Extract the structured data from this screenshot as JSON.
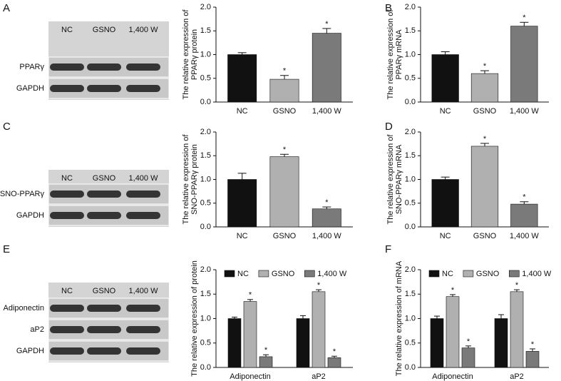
{
  "chart_data": [
    {
      "type": "bar",
      "panel": "A",
      "ylabel": [
        "The relative expression of",
        "PPARγ protein"
      ],
      "categories": [
        "NC",
        "GSNO",
        "1,400 W"
      ],
      "values": [
        1.0,
        0.48,
        1.45
      ],
      "errors": [
        0.04,
        0.08,
        0.1
      ],
      "colors": [
        "#111111",
        "#b0b0b0",
        "#7a7a7a"
      ],
      "markers": [
        null,
        "*",
        "*"
      ],
      "ylim": [
        0,
        2
      ],
      "yticks": [
        {
          "value": 0,
          "label": "0.0"
        },
        {
          "value": 0.5,
          "label": "0.5"
        },
        {
          "value": 1,
          "label": "1.0"
        },
        {
          "value": 1.5,
          "label": "1.5"
        },
        {
          "value": 2,
          "label": "2.0"
        }
      ]
    },
    {
      "type": "bar",
      "panel": "B",
      "ylabel": [
        "The relative expression of",
        "PPARγ mRNA"
      ],
      "categories": [
        "NC",
        "GSNO",
        "1,400 W"
      ],
      "values": [
        1.0,
        0.6,
        1.6
      ],
      "errors": [
        0.06,
        0.06,
        0.08
      ],
      "colors": [
        "#111111",
        "#b0b0b0",
        "#7a7a7a"
      ],
      "markers": [
        null,
        "*",
        "*"
      ],
      "ylim": [
        0,
        2
      ],
      "yticks": [
        {
          "value": 0,
          "label": "0.0"
        },
        {
          "value": 0.5,
          "label": "0.5"
        },
        {
          "value": 1,
          "label": "1.0"
        },
        {
          "value": 1.5,
          "label": "1.5"
        },
        {
          "value": 2,
          "label": "2.0"
        }
      ]
    },
    {
      "type": "bar",
      "panel": "C",
      "ylabel": [
        "The relative expression of",
        "SNO-PPARγ protein"
      ],
      "categories": [
        "NC",
        "GSNO",
        "1,400 W"
      ],
      "values": [
        1.0,
        1.48,
        0.38
      ],
      "errors": [
        0.13,
        0.05,
        0.04
      ],
      "colors": [
        "#111111",
        "#b0b0b0",
        "#7a7a7a"
      ],
      "markers": [
        null,
        "*",
        "*"
      ],
      "ylim": [
        0,
        2
      ],
      "yticks": [
        {
          "value": 0,
          "label": "0.0"
        },
        {
          "value": 0.5,
          "label": "0.5"
        },
        {
          "value": 1,
          "label": "1.0"
        },
        {
          "value": 1.5,
          "label": "1.5"
        },
        {
          "value": 2,
          "label": "2.0"
        }
      ]
    },
    {
      "type": "bar",
      "panel": "D",
      "ylabel": [
        "The relative expression of",
        "SNO-PPARγ mRNA"
      ],
      "categories": [
        "NC",
        "GSNO",
        "1,400 W"
      ],
      "values": [
        1.0,
        1.7,
        0.48
      ],
      "errors": [
        0.05,
        0.06,
        0.05
      ],
      "colors": [
        "#111111",
        "#b0b0b0",
        "#7a7a7a"
      ],
      "markers": [
        null,
        "*",
        "*"
      ],
      "ylim": [
        0,
        2
      ],
      "yticks": [
        {
          "value": 0,
          "label": "0.0"
        },
        {
          "value": 0.5,
          "label": "0.5"
        },
        {
          "value": 1,
          "label": "1.0"
        },
        {
          "value": 1.5,
          "label": "1.5"
        },
        {
          "value": 2,
          "label": "2.0"
        }
      ]
    },
    {
      "type": "grouped-bar",
      "panel": "E",
      "ylabel": [
        "The relative expression of protein"
      ],
      "categories": [
        "Adiponectin",
        "aP2"
      ],
      "series": [
        {
          "name": "NC",
          "color": "#111111",
          "values": [
            1.0,
            1.0
          ],
          "errors": [
            0.03,
            0.06
          ],
          "markers": [
            null,
            null
          ]
        },
        {
          "name": "GSNO",
          "color": "#b0b0b0",
          "values": [
            1.35,
            1.55
          ],
          "errors": [
            0.04,
            0.04
          ],
          "markers": [
            "*",
            "*"
          ]
        },
        {
          "name": "1,400 W",
          "color": "#7a7a7a",
          "values": [
            0.22,
            0.2
          ],
          "errors": [
            0.04,
            0.03
          ],
          "markers": [
            "*",
            "*"
          ]
        }
      ],
      "ylim": [
        0,
        2
      ],
      "yticks": [
        {
          "value": 0,
          "label": "0.0"
        },
        {
          "value": 0.5,
          "label": "0.5"
        },
        {
          "value": 1,
          "label": "1.0"
        },
        {
          "value": 1.5,
          "label": "1.5"
        },
        {
          "value": 2,
          "label": "2.0"
        }
      ]
    },
    {
      "type": "grouped-bar",
      "panel": "F",
      "ylabel": [
        "The relative expression of mRNA"
      ],
      "categories": [
        "Adiponectin",
        "aP2"
      ],
      "series": [
        {
          "name": "NC",
          "color": "#111111",
          "values": [
            1.0,
            1.0
          ],
          "errors": [
            0.05,
            0.08
          ],
          "markers": [
            null,
            null
          ]
        },
        {
          "name": "GSNO",
          "color": "#b0b0b0",
          "values": [
            1.45,
            1.55
          ],
          "errors": [
            0.04,
            0.04
          ],
          "markers": [
            "*",
            "*"
          ]
        },
        {
          "name": "1,400 W",
          "color": "#7a7a7a",
          "values": [
            0.4,
            0.33
          ],
          "errors": [
            0.04,
            0.05
          ],
          "markers": [
            "*",
            "*"
          ]
        }
      ],
      "ylim": [
        0,
        2
      ],
      "yticks": [
        {
          "value": 0,
          "label": "0.0"
        },
        {
          "value": 0.5,
          "label": "0.5"
        },
        {
          "value": 1,
          "label": "1.0"
        },
        {
          "value": 1.5,
          "label": "1.5"
        },
        {
          "value": 2,
          "label": "2.0"
        }
      ]
    }
  ],
  "blots": [
    {
      "lanes": [
        "NC",
        "GSNO",
        "1,400 W"
      ],
      "rows": [
        "PPARγ",
        "GAPDH"
      ]
    },
    {
      "lanes": [
        "NC",
        "GSNO",
        "1,400 W"
      ],
      "rows": [
        "SNO-PPARγ",
        "GAPDH"
      ]
    },
    {
      "lanes": [
        "NC",
        "GSNO",
        "1,400 W"
      ],
      "rows": [
        "Adiponectin",
        "aP2",
        "GAPDH"
      ]
    }
  ]
}
